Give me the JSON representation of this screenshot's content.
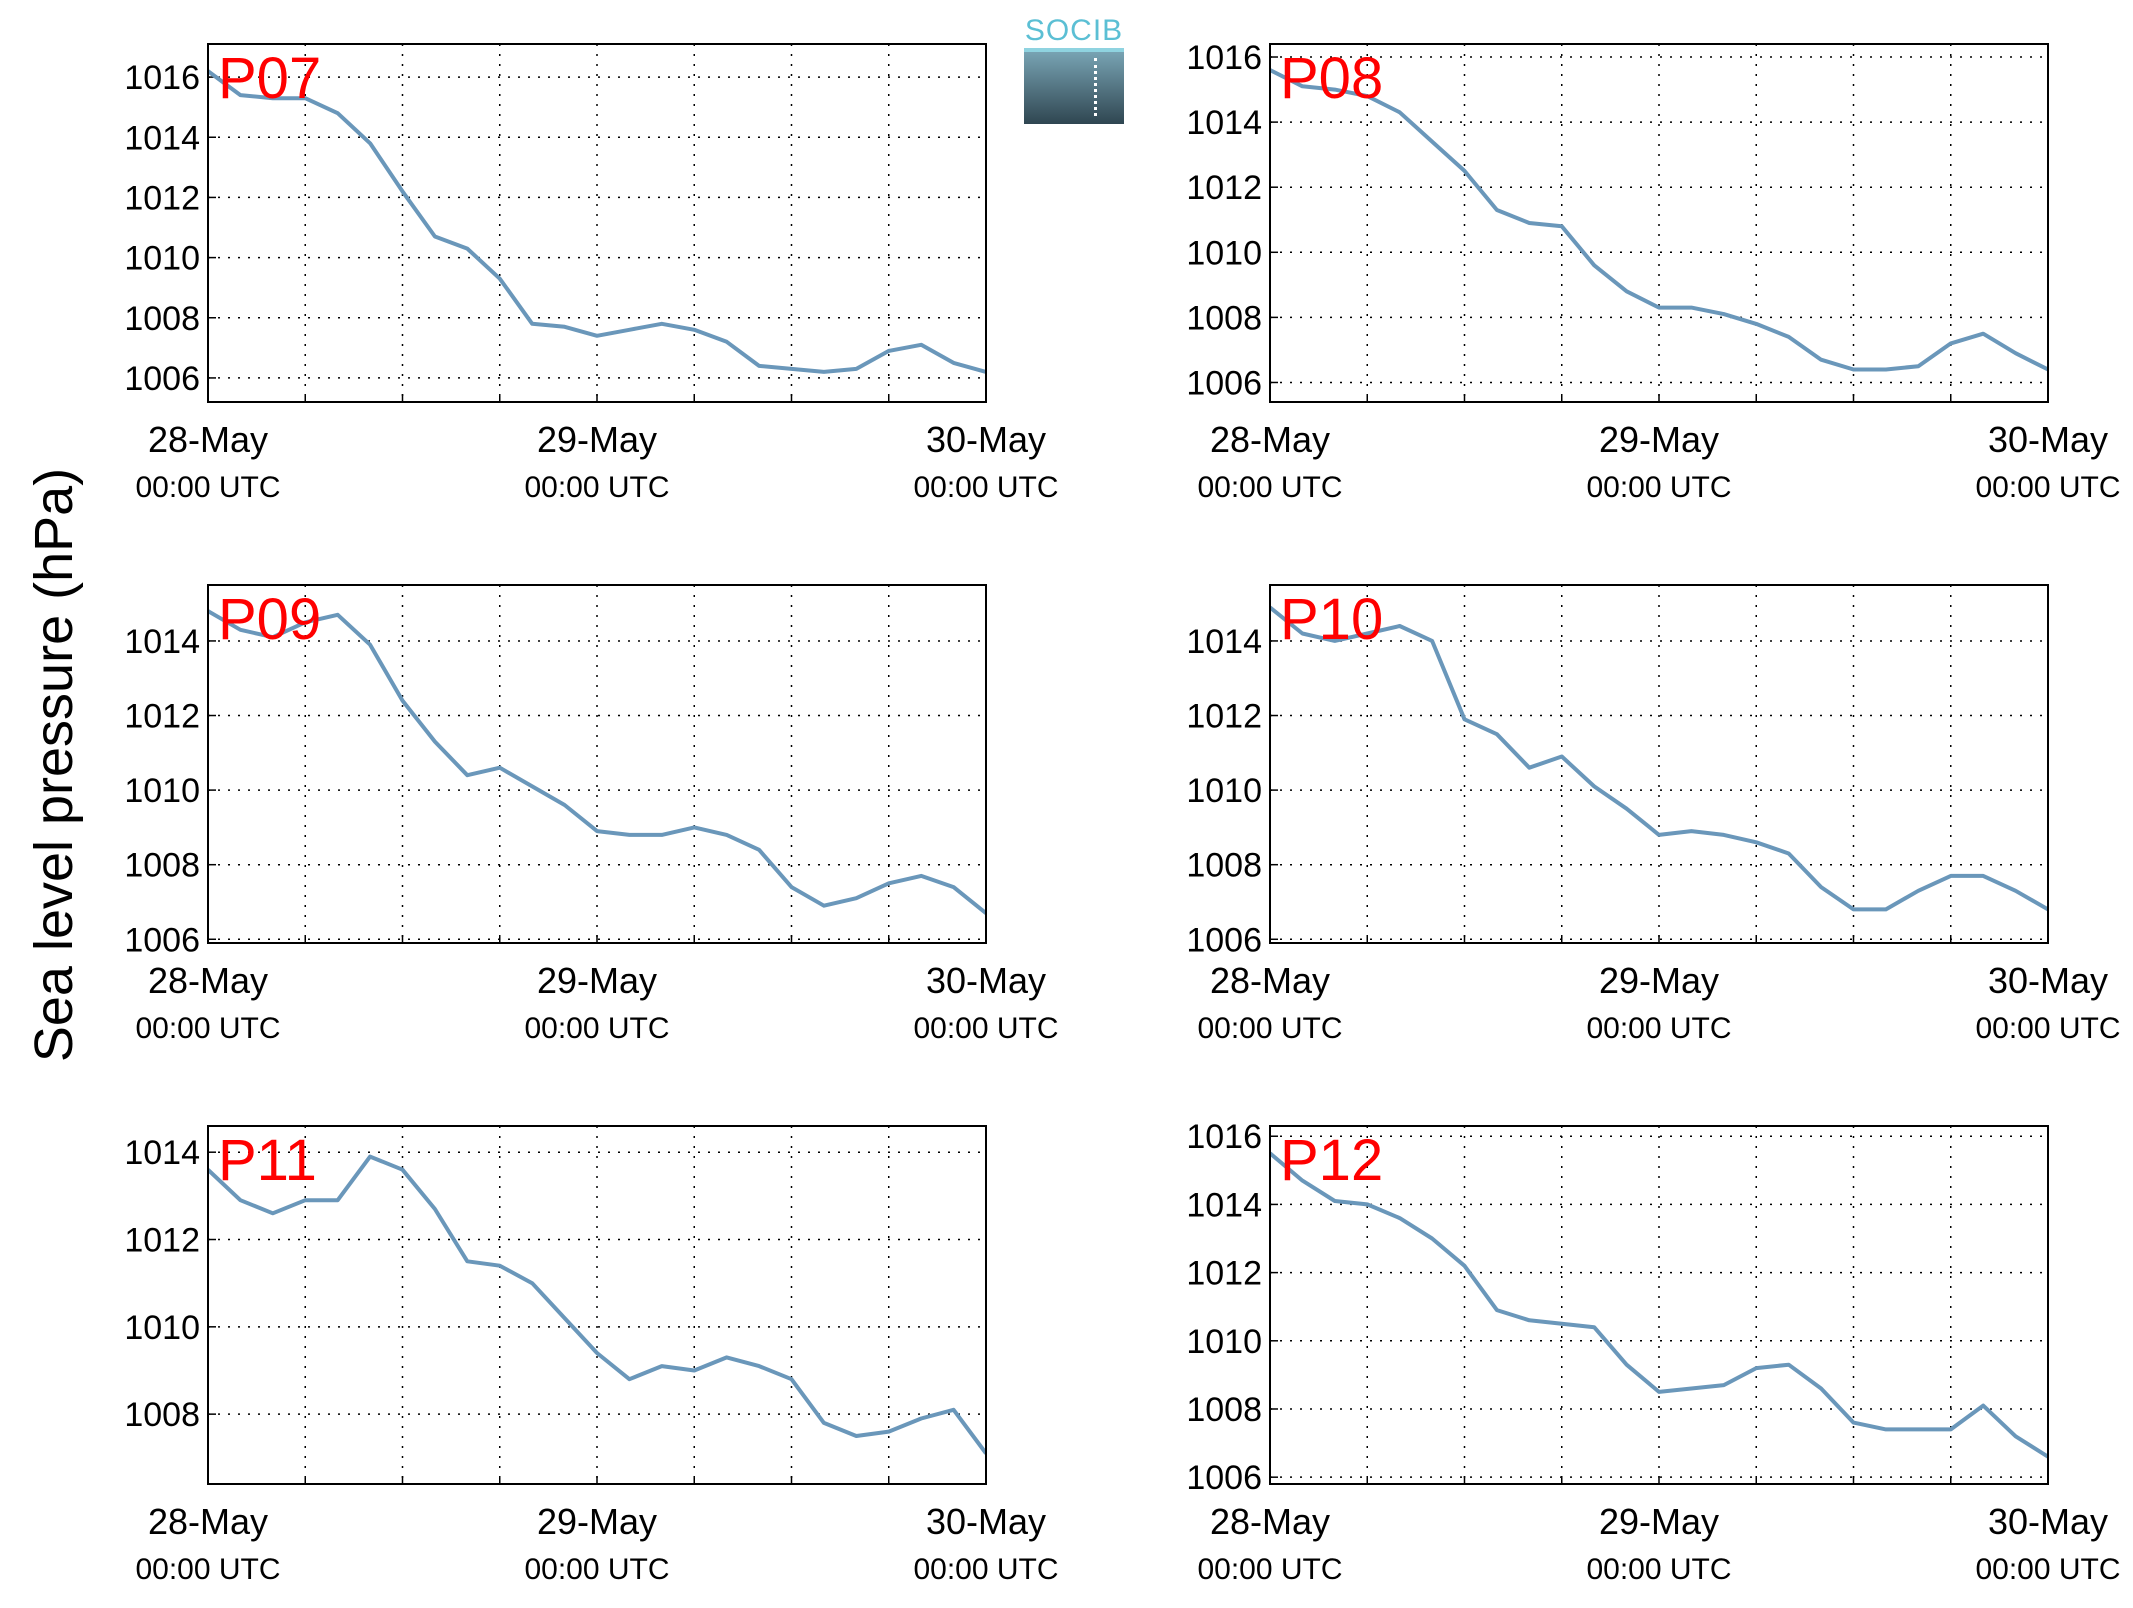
{
  "figure": {
    "ylabel": "Sea level pressure (hPa)",
    "logo_text": "SOCIB",
    "line_color": "#6a97ba",
    "station_label_color": "#ff0000"
  },
  "chart_data": [
    {
      "type": "line",
      "station": "P07",
      "xlim": [
        "28-May 00:00 UTC",
        "30-May 00:00 UTC"
      ],
      "xticks": [
        {
          "date": "28-May",
          "time": "00:00 UTC"
        },
        {
          "date": "29-May",
          "time": "00:00 UTC"
        },
        {
          "date": "30-May",
          "time": "00:00 UTC"
        }
      ],
      "ylim": [
        1005.2,
        1017.1
      ],
      "yticks": [
        1006,
        1008,
        1010,
        1012,
        1014,
        1016
      ],
      "grid": true,
      "x_hours": [
        0,
        2,
        4,
        6,
        8,
        10,
        12,
        14,
        16,
        18,
        20,
        22,
        24,
        26,
        28,
        30,
        32,
        34,
        36,
        38,
        40,
        42,
        44,
        46,
        48
      ],
      "y": [
        1016.2,
        1015.4,
        1015.3,
        1015.3,
        1014.8,
        1013.8,
        1012.2,
        1010.7,
        1010.3,
        1009.3,
        1007.8,
        1007.7,
        1007.4,
        1007.6,
        1007.8,
        1007.6,
        1007.2,
        1006.4,
        1006.3,
        1006.2,
        1006.3,
        1006.9,
        1007.1,
        1006.5,
        1006.2
      ]
    },
    {
      "type": "line",
      "station": "P08",
      "xlim": [
        "28-May 00:00 UTC",
        "30-May 00:00 UTC"
      ],
      "xticks": [
        {
          "date": "28-May",
          "time": "00:00 UTC"
        },
        {
          "date": "29-May",
          "time": "00:00 UTC"
        },
        {
          "date": "30-May",
          "time": "00:00 UTC"
        }
      ],
      "ylim": [
        1005.4,
        1016.4
      ],
      "yticks": [
        1006,
        1008,
        1010,
        1012,
        1014,
        1016
      ],
      "grid": true,
      "x_hours": [
        0,
        2,
        4,
        6,
        8,
        10,
        12,
        14,
        16,
        18,
        20,
        22,
        24,
        26,
        28,
        30,
        32,
        34,
        36,
        38,
        40,
        42,
        44,
        46,
        48
      ],
      "y": [
        1015.6,
        1015.1,
        1015.0,
        1014.8,
        1014.3,
        1013.4,
        1012.5,
        1011.3,
        1010.9,
        1010.8,
        1009.6,
        1008.8,
        1008.3,
        1008.3,
        1008.1,
        1007.8,
        1007.4,
        1006.7,
        1006.4,
        1006.4,
        1006.5,
        1007.2,
        1007.5,
        1006.9,
        1006.4
      ]
    },
    {
      "type": "line",
      "station": "P09",
      "xlim": [
        "28-May 00:00 UTC",
        "30-May 00:00 UTC"
      ],
      "xticks": [
        {
          "date": "28-May",
          "time": "00:00 UTC"
        },
        {
          "date": "29-May",
          "time": "00:00 UTC"
        },
        {
          "date": "30-May",
          "time": "00:00 UTC"
        }
      ],
      "ylim": [
        1005.9,
        1015.5
      ],
      "yticks": [
        1006,
        1008,
        1010,
        1012,
        1014
      ],
      "grid": true,
      "x_hours": [
        0,
        2,
        4,
        6,
        8,
        10,
        12,
        14,
        16,
        18,
        20,
        22,
        24,
        26,
        28,
        30,
        32,
        34,
        36,
        38,
        40,
        42,
        44,
        46,
        48
      ],
      "y": [
        1014.8,
        1014.3,
        1014.1,
        1014.5,
        1014.7,
        1013.9,
        1012.4,
        1011.3,
        1010.4,
        1010.6,
        1010.1,
        1009.6,
        1008.9,
        1008.8,
        1008.8,
        1009.0,
        1008.8,
        1008.4,
        1007.4,
        1006.9,
        1007.1,
        1007.5,
        1007.7,
        1007.4,
        1006.7
      ]
    },
    {
      "type": "line",
      "station": "P10",
      "xlim": [
        "28-May 00:00 UTC",
        "30-May 00:00 UTC"
      ],
      "xticks": [
        {
          "date": "28-May",
          "time": "00:00 UTC"
        },
        {
          "date": "29-May",
          "time": "00:00 UTC"
        },
        {
          "date": "30-May",
          "time": "00:00 UTC"
        }
      ],
      "ylim": [
        1005.9,
        1015.5
      ],
      "yticks": [
        1006,
        1008,
        1010,
        1012,
        1014
      ],
      "grid": true,
      "x_hours": [
        0,
        2,
        4,
        6,
        8,
        10,
        12,
        14,
        16,
        18,
        20,
        22,
        24,
        26,
        28,
        30,
        32,
        34,
        36,
        38,
        40,
        42,
        44,
        46,
        48
      ],
      "y": [
        1014.9,
        1014.2,
        1014.0,
        1014.2,
        1014.4,
        1014.0,
        1011.9,
        1011.5,
        1010.6,
        1010.9,
        1010.1,
        1009.5,
        1008.8,
        1008.9,
        1008.8,
        1008.6,
        1008.3,
        1007.4,
        1006.8,
        1006.8,
        1007.3,
        1007.7,
        1007.7,
        1007.3,
        1006.8
      ]
    },
    {
      "type": "line",
      "station": "P11",
      "xlim": [
        "28-May 00:00 UTC",
        "30-May 00:00 UTC"
      ],
      "xticks": [
        {
          "date": "28-May",
          "time": "00:00 UTC"
        },
        {
          "date": "29-May",
          "time": "00:00 UTC"
        },
        {
          "date": "30-May",
          "time": "00:00 UTC"
        }
      ],
      "ylim": [
        1006.4,
        1014.6
      ],
      "yticks": [
        1008,
        1010,
        1012,
        1014
      ],
      "grid": true,
      "x_hours": [
        0,
        2,
        4,
        6,
        8,
        10,
        12,
        14,
        16,
        18,
        20,
        22,
        24,
        26,
        28,
        30,
        32,
        34,
        36,
        38,
        40,
        42,
        44,
        46,
        48
      ],
      "y": [
        1013.6,
        1012.9,
        1012.6,
        1012.9,
        1012.9,
        1013.9,
        1013.6,
        1012.7,
        1011.5,
        1011.4,
        1011.0,
        1010.2,
        1009.4,
        1008.8,
        1009.1,
        1009.0,
        1009.3,
        1009.1,
        1008.8,
        1007.8,
        1007.5,
        1007.6,
        1007.9,
        1008.1,
        1007.1
      ]
    },
    {
      "type": "line",
      "station": "P12",
      "xlim": [
        "28-May 00:00 UTC",
        "30-May 00:00 UTC"
      ],
      "xticks": [
        {
          "date": "28-May",
          "time": "00:00 UTC"
        },
        {
          "date": "29-May",
          "time": "00:00 UTC"
        },
        {
          "date": "30-May",
          "time": "00:00 UTC"
        }
      ],
      "ylim": [
        1005.8,
        1016.3
      ],
      "yticks": [
        1006,
        1008,
        1010,
        1012,
        1014,
        1016
      ],
      "grid": true,
      "x_hours": [
        0,
        2,
        4,
        6,
        8,
        10,
        12,
        14,
        16,
        18,
        20,
        22,
        24,
        26,
        28,
        30,
        32,
        34,
        36,
        38,
        40,
        42,
        44,
        46,
        48
      ],
      "y": [
        1015.5,
        1014.7,
        1014.1,
        1014.0,
        1013.6,
        1013.0,
        1012.2,
        1010.9,
        1010.6,
        1010.5,
        1010.4,
        1009.3,
        1008.5,
        1008.6,
        1008.7,
        1009.2,
        1009.3,
        1008.6,
        1007.6,
        1007.4,
        1007.4,
        1007.4,
        1008.1,
        1007.2,
        1006.6
      ]
    }
  ]
}
